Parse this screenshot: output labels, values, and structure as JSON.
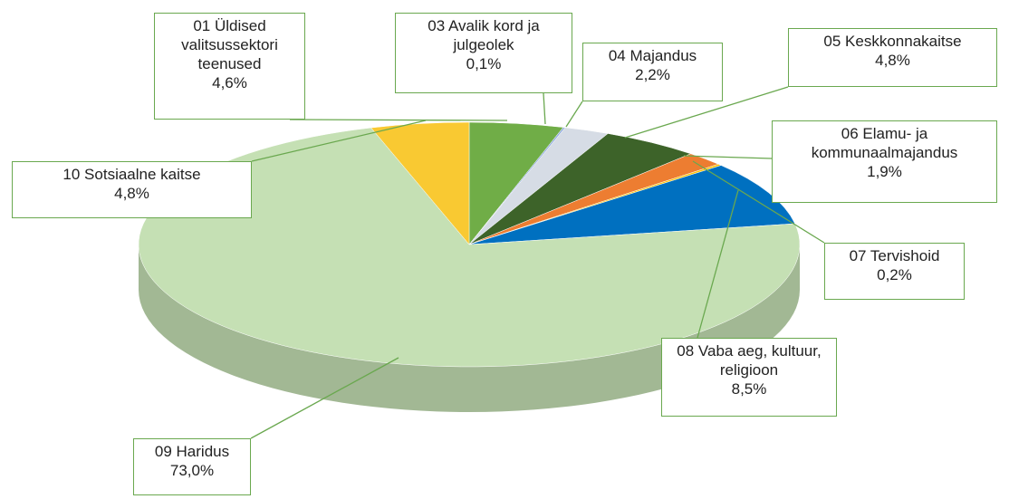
{
  "chart_data": {
    "type": "pie",
    "three_d": true,
    "categories": [
      "01 Üldised valitsussektori teenused",
      "03 Avalik kord ja julgeolek",
      "04 Majandus",
      "05 Keskkonnakaitse",
      "06 Elamu- ja kommunaalmajandus",
      "07 Tervishoid",
      "08 Vaba aeg, kultuur, religioon",
      "09 Haridus",
      "10 Sotsiaalne kaitse"
    ],
    "values": [
      4.6,
      0.1,
      2.2,
      4.8,
      1.9,
      0.2,
      8.5,
      73.0,
      4.8
    ],
    "value_labels": [
      "4,6%",
      "0,1%",
      "2,2%",
      "4,8%",
      "1,9%",
      "0,2%",
      "8,5%",
      "73,0%",
      "4,8%"
    ],
    "colors": [
      "#70ad47",
      "#8faadc",
      "#d6dce5",
      "#3d6329",
      "#ed7d31",
      "#ffc000",
      "#0070c0",
      "#c5e0b4",
      "#f9c932"
    ]
  }
}
